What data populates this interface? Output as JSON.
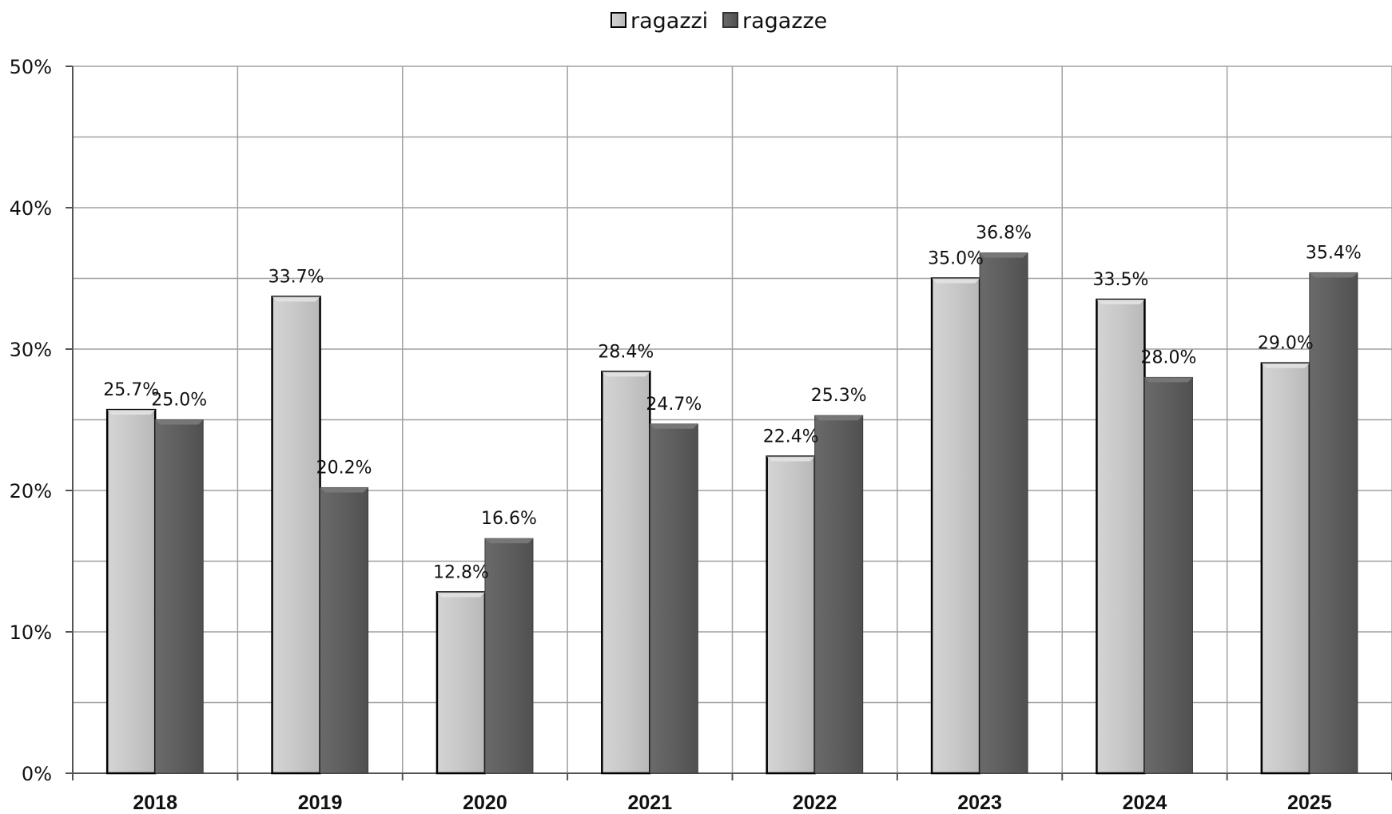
{
  "chart_data": {
    "type": "bar",
    "title": "",
    "xlabel": "",
    "ylabel": "",
    "categories": [
      "2018",
      "2019",
      "2020",
      "2021",
      "2022",
      "2023",
      "2024",
      "2025"
    ],
    "series": [
      {
        "name": "ragazzi",
        "values": [
          25.7,
          33.7,
          12.8,
          28.4,
          22.4,
          35.0,
          33.5,
          29.0
        ],
        "labels": [
          "25.7%",
          "33.7%",
          "12.8%",
          "28.4%",
          "22.4%",
          "35.0%",
          "33.5%",
          "29.0%"
        ],
        "color": "#c8c8c8"
      },
      {
        "name": "ragazze",
        "values": [
          25.0,
          20.2,
          16.6,
          24.7,
          25.3,
          36.8,
          28.0,
          35.4
        ],
        "labels": [
          "25.0%",
          "20.2%",
          "16.6%",
          "24.7%",
          "25.3%",
          "36.8%",
          "28.0%",
          "35.4%"
        ],
        "color": "#606060"
      }
    ],
    "ylim": [
      0,
      50
    ],
    "yticks": [
      "0%",
      "10%",
      "20%",
      "30%",
      "40%",
      "50%"
    ],
    "ytick_values": [
      0,
      10,
      20,
      30,
      40,
      50
    ],
    "y_minor_step": 5,
    "grid": true,
    "legend": "top-center"
  }
}
